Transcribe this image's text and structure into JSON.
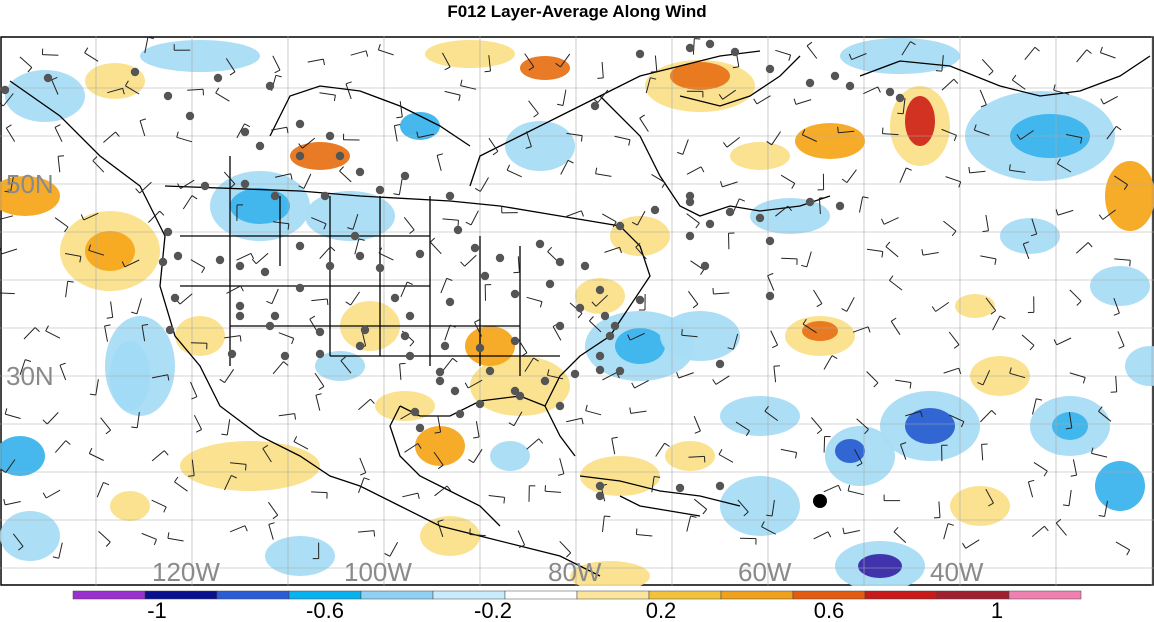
{
  "title": "F012 Layer-Average Along Wind",
  "lat_labels": [
    "50N",
    "30N"
  ],
  "lon_labels": [
    "120W",
    "100W",
    "80W",
    "60W",
    "40W"
  ],
  "colorbar": {
    "ticks": [
      "-1",
      "-0.6",
      "-0.2",
      "0.2",
      "0.6",
      "1"
    ],
    "colors": [
      "#9b30d0",
      "#08108f",
      "#2a5cd6",
      "#06b2ef",
      "#8fd1f4",
      "#c9ebfb",
      "#ffffff",
      "#fbe59a",
      "#f4c23a",
      "#f0a01a",
      "#e65b12",
      "#c81a1a",
      "#a02030",
      "#f080b0"
    ]
  },
  "colors": {
    "land_border": "#000000",
    "station": "#555555",
    "grid": "#a9a9a9",
    "neg_light": "#a8dcf6",
    "neg_mid": "#3cb4ec",
    "neg_dark": "#2a5fd1",
    "neg_deep": "#3a2aa8",
    "pos_light": "#fbe08a",
    "pos_mid": "#f5a81e",
    "pos_dark": "#e8741a",
    "pos_deep": "#d0281c"
  }
}
